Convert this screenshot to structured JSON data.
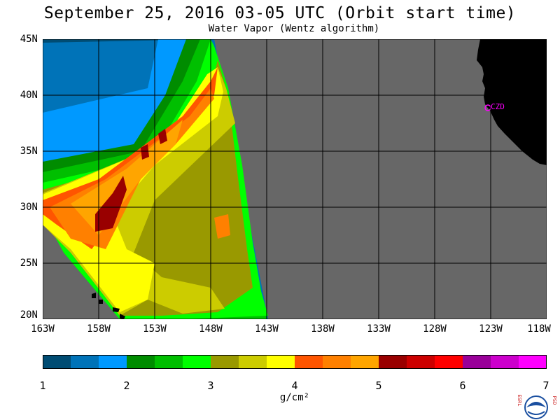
{
  "title": "September 25, 2016  03-05 UTC  (Orbit start time)",
  "subtitle": "Water Vapor (Wentz algorithm)",
  "lat_labels": [
    "45N",
    "40N",
    "35N",
    "30N",
    "25N",
    "20N"
  ],
  "lon_labels": [
    "163W",
    "158W",
    "153W",
    "148W",
    "143W",
    "138W",
    "133W",
    "128W",
    "123W",
    "118W"
  ],
  "station_label": "CZD",
  "colorbar": {
    "ticks": [
      "1",
      "2",
      "3",
      "4",
      "5",
      "6",
      "7"
    ],
    "units": "g/cm²",
    "colors": [
      "#004c73",
      "#0073b8",
      "#0099ff",
      "#008c00",
      "#00bf00",
      "#00ff00",
      "#999900",
      "#cccc00",
      "#ffff00",
      "#ff5500",
      "#ff8000",
      "#ffa500",
      "#990000",
      "#cc0000",
      "#ff0000",
      "#990099",
      "#cc00cc",
      "#ff00ff"
    ]
  },
  "colors": {
    "no_data": "#676767",
    "land": "#000000",
    "grid": "#000000",
    "station": "#ff00ff"
  },
  "logo": {
    "left_letters": "ESRL",
    "right_letters": "PSD",
    "center": "NOAA"
  }
}
